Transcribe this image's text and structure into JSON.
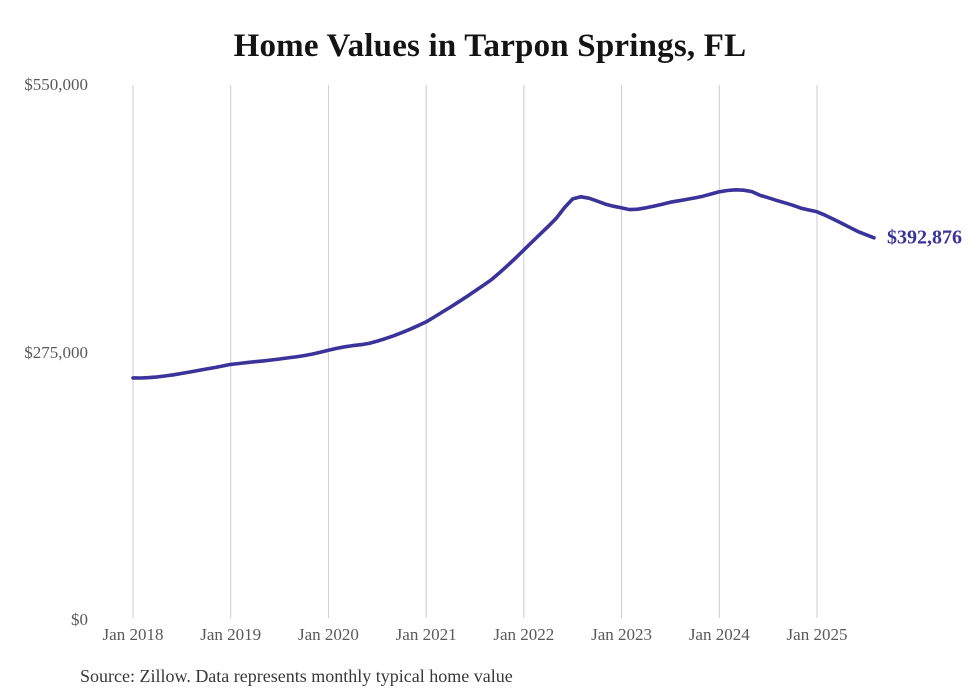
{
  "chart_data": {
    "type": "line",
    "title": "Home Values in Tarpon Springs, FL",
    "source_note": "Source: Zillow. Data represents monthly typical home value",
    "end_label": "$392,876",
    "end_value": 392876,
    "frequency": "monthly",
    "x_start": "Jan 2018",
    "x_end": "Aug 2025",
    "xlabel": "",
    "ylabel": "",
    "ylim": [
      0,
      550000
    ],
    "grid": "vertical-only",
    "legend": "none",
    "x_tick_labels": [
      "Jan 2018",
      "Jan 2019",
      "Jan 2020",
      "Jan 2021",
      "Jan 2022",
      "Jan 2023",
      "Jan 2024",
      "Jan 2025"
    ],
    "y_ticks": [
      {
        "value": 0,
        "label": "$0"
      },
      {
        "value": 275000,
        "label": "$275,000"
      },
      {
        "value": 550000,
        "label": "$550,000"
      }
    ],
    "colors": {
      "line": "#3b3399",
      "grid": "#cccccc",
      "axis_text": "#595959",
      "title_text": "#141414",
      "source_text": "#383838"
    },
    "series": [
      {
        "name": "Typical home value",
        "values": [
          248900,
          248800,
          249200,
          249900,
          250900,
          252100,
          253500,
          255000,
          256500,
          258000,
          259500,
          261100,
          262800,
          263700,
          264600,
          265500,
          266400,
          267300,
          268300,
          269400,
          270500,
          271800,
          273400,
          275200,
          277300,
          279200,
          280900,
          282100,
          283000,
          284400,
          286700,
          289300,
          292200,
          295400,
          298900,
          302600,
          306500,
          311500,
          316600,
          321800,
          327100,
          332600,
          338200,
          343900,
          349700,
          356800,
          364400,
          372300,
          380500,
          388600,
          396600,
          404700,
          413200,
          424100,
          432900,
          435100,
          433600,
          430600,
          427600,
          425400,
          423700,
          421900,
          422300,
          423800,
          425500,
          427500,
          429500,
          431000,
          432400,
          433900,
          435700,
          437900,
          440200,
          441500,
          442300,
          441900,
          440400,
          436600,
          434100,
          431500,
          429000,
          426400,
          423400,
          421500,
          419600,
          416100,
          412100,
          408000,
          403700,
          399500,
          396100,
          392876
        ]
      }
    ]
  }
}
